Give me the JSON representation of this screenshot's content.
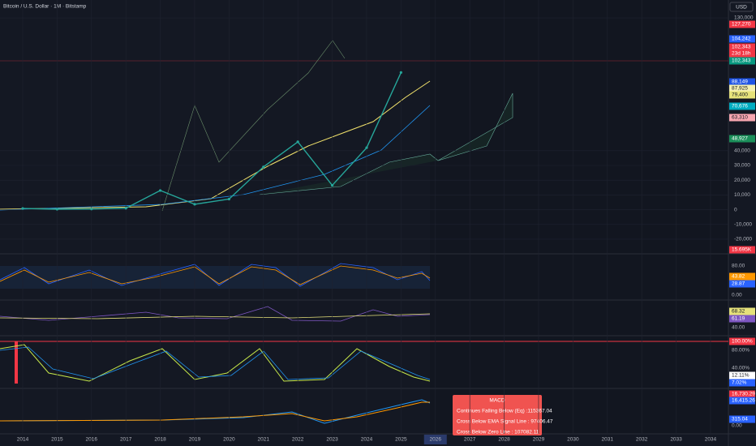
{
  "header": {
    "title": "Bitcoin / U.S. Dollar · 1M · Bitstamp",
    "currency": "USD"
  },
  "chart_data": {
    "type": "line",
    "color": "#26a69a",
    "x": [
      2014,
      2015,
      2016,
      2017,
      2018,
      2019,
      2020,
      2021,
      2022,
      2023,
      2024,
      2025
    ],
    "values": [
      800,
      320,
      430,
      1000,
      13000,
      3700,
      7200,
      29000,
      46000,
      16500,
      42000,
      93000
    ],
    "xlim": [
      2013.34,
      2034.52
    ],
    "ylim": [
      -29900,
      142100
    ],
    "xticks": [
      2014,
      2015,
      2016,
      2017,
      2018,
      2019,
      2020,
      2021,
      2022,
      2023,
      2024,
      2025,
      2026,
      2027,
      2028,
      2029,
      2030,
      2031,
      2032,
      2033,
      2034
    ],
    "yticks": [
      {
        "value": 130000,
        "label": "130,000"
      },
      {
        "value": 40000,
        "label": "40,000"
      },
      {
        "value": 30000,
        "label": "30,000"
      },
      {
        "value": 20000,
        "label": "20,000"
      },
      {
        "value": 10000,
        "label": "10,000"
      },
      0,
      {
        "value": -10000,
        "label": "-10,000"
      },
      {
        "value": -20000,
        "label": "-20,000"
      }
    ],
    "grid": true
  },
  "price_tags": [
    {
      "text": "127,270",
      "color": "#f23645"
    },
    {
      "text": "104,242",
      "color": "#2962ff"
    },
    {
      "text": "102,343",
      "color": "#f23645"
    },
    {
      "text": "23d 18h",
      "color": "#f23645"
    },
    {
      "text": "102,343",
      "color": "#089981"
    },
    {
      "text": "88,149",
      "color": "#1e53e5"
    },
    {
      "text": "87,925",
      "color": "#f5f0b0"
    },
    {
      "text": "79,400",
      "color": "#e6e27a"
    },
    {
      "text": "70,676",
      "color": "#00acc1"
    },
    {
      "text": "63,310",
      "color": "#f7a6b0"
    },
    {
      "text": "48,927",
      "color": "#1b8f5a"
    },
    {
      "text": "15.695K",
      "color": "#f23645"
    }
  ],
  "panes": [
    {
      "labels": [
        {
          "text": "80.00"
        },
        {
          "text": "43.82",
          "color": "#ff9800"
        },
        {
          "text": "28.87",
          "color": "#2962ff"
        },
        {
          "text": "0.00"
        }
      ]
    },
    {
      "labels": [
        {
          "text": "68.32",
          "color": "#e6e27a"
        },
        {
          "text": "61.19",
          "color": "#7e57c2"
        },
        {
          "text": "40.00"
        }
      ]
    },
    {
      "labels": [
        {
          "text": "100.00%",
          "color": "#f23645"
        },
        {
          "text": "80.00%"
        },
        {
          "text": "40.00%"
        },
        {
          "text": "12.11%",
          "color": "#ffffff"
        },
        {
          "text": "7.02%",
          "color": "#2962ff"
        }
      ]
    },
    {
      "labels": [
        {
          "text": "16,730.29",
          "color": "#f23645"
        },
        {
          "text": "16,415.26",
          "color": "#2962ff"
        },
        {
          "text": "315.04",
          "color": "#2962ff"
        },
        {
          "text": "0.00"
        }
      ]
    }
  ],
  "popup": {
    "title": "MACD",
    "lines": [
      "Continues Falling Below (Eq) :115367.04",
      "Cross Below EMA Signal Line : 97406.47",
      "Cross Below Zero Line : 107082.11"
    ]
  }
}
